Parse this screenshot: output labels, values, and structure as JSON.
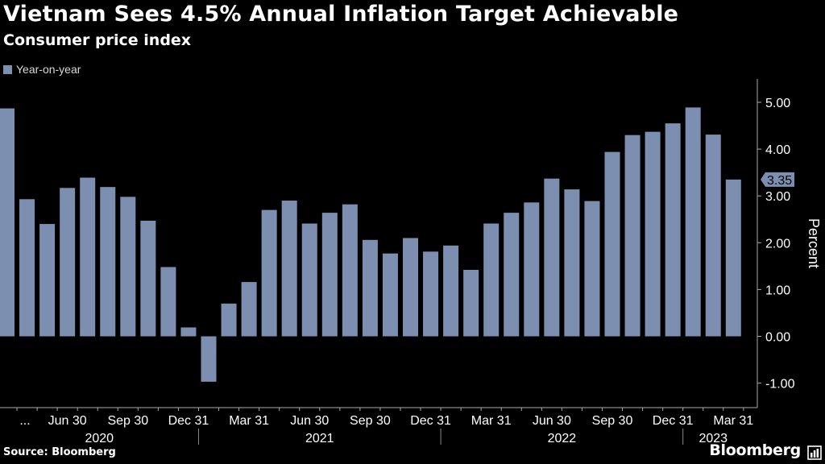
{
  "title": "Vietnam Sees 4.5% Annual Inflation Target Achievable",
  "subtitle": "Consumer price index",
  "legend": {
    "label": "Year-on-year"
  },
  "source": "Source: Bloomberg",
  "brand": "Bloomberg",
  "colors": {
    "bar": "#7d8fb1",
    "background": "#000000",
    "grid": "#555555",
    "text": "#ffffff"
  },
  "chart_data": {
    "type": "bar",
    "title": "Vietnam Sees 4.5% Annual Inflation Target Achievable",
    "subtitle": "Consumer price index",
    "xlabel": "",
    "ylabel": "Percent",
    "ylim": [
      -1.5,
      5.5
    ],
    "yticks": [
      -1.0,
      0.0,
      1.0,
      2.0,
      3.0,
      4.0,
      5.0
    ],
    "ytick_labels": [
      "-1.00",
      "0.00",
      "1.00",
      "2.00",
      "3.00",
      "4.00",
      "5.00"
    ],
    "series": [
      {
        "name": "Year-on-year",
        "values": [
          4.87,
          2.93,
          2.4,
          3.17,
          3.39,
          3.19,
          2.98,
          2.47,
          1.48,
          0.19,
          -0.97,
          0.7,
          1.16,
          2.7,
          2.9,
          2.41,
          2.64,
          2.82,
          2.06,
          1.77,
          2.1,
          1.81,
          1.94,
          1.42,
          2.41,
          2.64,
          2.86,
          3.37,
          3.14,
          2.89,
          3.94,
          4.3,
          4.37,
          4.55,
          4.89,
          4.31,
          3.35
        ]
      }
    ],
    "x_tick_labels": [
      "...",
      "Jun 30",
      "Sep 30",
      "Dec 31",
      "Mar 31",
      "Jun 30",
      "Sep 30",
      "Dec 31",
      "Mar 31",
      "Jun 30",
      "Sep 30",
      "Dec 31",
      "Mar 31"
    ],
    "x_tick_bar_index": [
      0.5,
      3,
      6,
      9,
      12,
      15,
      18,
      21,
      24,
      27,
      30,
      33,
      36
    ],
    "x_year_labels": [
      "2020",
      "2021",
      "2022",
      "2023"
    ],
    "x_year_bar_span": [
      [
        0,
        9
      ],
      [
        10,
        21
      ],
      [
        22,
        33
      ],
      [
        34,
        36
      ]
    ],
    "last_value_label": "3.35",
    "grid": false,
    "legend_position": "top-left"
  }
}
